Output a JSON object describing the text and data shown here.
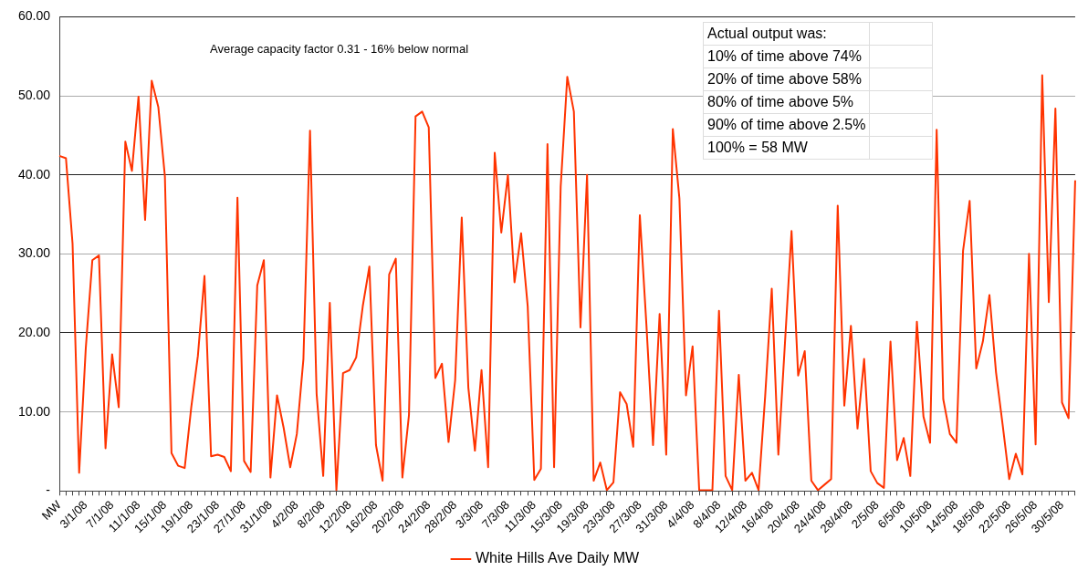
{
  "chart_data": {
    "type": "line",
    "categories": [
      "MW",
      null,
      null,
      null,
      "3/1/08",
      null,
      null,
      null,
      "7/1/08",
      null,
      null,
      null,
      "11/1/08",
      null,
      null,
      null,
      "15/1/08",
      null,
      null,
      null,
      "19/1/08",
      null,
      null,
      null,
      "23/1/08",
      null,
      null,
      null,
      "27/1/08",
      null,
      null,
      null,
      "31/1/08",
      null,
      null,
      null,
      "4/2/08",
      null,
      null,
      null,
      "8/2/08",
      null,
      null,
      null,
      "12/2/08",
      null,
      null,
      null,
      "16/2/08",
      null,
      null,
      null,
      "20/2/08",
      null,
      null,
      null,
      "24/2/08",
      null,
      null,
      null,
      "28/2/08",
      null,
      null,
      null,
      "3/3/08",
      null,
      null,
      null,
      "7/3/08",
      null,
      null,
      null,
      "11/3/08",
      null,
      null,
      null,
      "15/3/08",
      null,
      null,
      null,
      "19/3/08",
      null,
      null,
      null,
      "23/3/08",
      null,
      null,
      null,
      "27/3/08",
      null,
      null,
      null,
      "31/3/08",
      null,
      null,
      null,
      "4/4/08",
      null,
      null,
      null,
      "8/4/08",
      null,
      null,
      null,
      "12/4/08",
      null,
      null,
      null,
      "16/4/08",
      null,
      null,
      null,
      "20/4/08",
      null,
      null,
      null,
      "24/4/08",
      null,
      null,
      null,
      "28/4/08",
      null,
      null,
      null,
      "2/5/08",
      null,
      null,
      null,
      "6/5/08",
      null,
      null,
      null,
      "10/5/08",
      null,
      null,
      null,
      "14/5/08",
      null,
      null,
      null,
      "18/5/08",
      null,
      null,
      null,
      "22/5/08",
      null,
      null,
      null,
      "26/5/08",
      null,
      null,
      null,
      "30/5/08",
      null,
      null
    ],
    "series": [
      {
        "name": "White Hills Ave Daily MW",
        "color": "#ff3300",
        "values": [
          42.4,
          42.1,
          31.3,
          2.3,
          18,
          29.2,
          29.8,
          5.4,
          17.3,
          10.6,
          44.2,
          40.5,
          49.9,
          34.3,
          51.9,
          48.6,
          39.8,
          4.8,
          3.2,
          2.9,
          10.6,
          17.1,
          27.2,
          4.4,
          4.6,
          4.3,
          2.5,
          37.1,
          3.8,
          2.4,
          26,
          29.2,
          1.7,
          12.1,
          8,
          3,
          7.2,
          16.7,
          45.6,
          12.3,
          1.9,
          23.8,
          0.1,
          14.9,
          15.3,
          16.9,
          23.4,
          28.4,
          5.8,
          1.3,
          27.4,
          29.4,
          1.7,
          9.6,
          47.4,
          48,
          46,
          14.3,
          16.1,
          6.2,
          14,
          34.6,
          13.1,
          5.1,
          15.3,
          3,
          42.8,
          32.7,
          40,
          26.4,
          32.6,
          23.4,
          1.4,
          2.8,
          43.9,
          3,
          38.5,
          52.4,
          48,
          20.7,
          40,
          1.3,
          3.6,
          0.1,
          1.1,
          12.5,
          11,
          5.6,
          34.9,
          21,
          5.8,
          22.4,
          4.6,
          45.8,
          37,
          12.1,
          18.3,
          0.1,
          0.1,
          0.1,
          22.8,
          1.9,
          0.1,
          14.7,
          1.3,
          2.3,
          0.1,
          12,
          25.6,
          4.6,
          18.7,
          32.9,
          14.6,
          17.7,
          1.3,
          0.1,
          0.8,
          1.5,
          36.1,
          10.8,
          20.9,
          7.9,
          16.7,
          2.5,
          1,
          0.4,
          18.9,
          3.9,
          6.7,
          1.9,
          21.4,
          9.4,
          6.1,
          45.7,
          11.6,
          7.2,
          6.1,
          30.4,
          36.7,
          15.5,
          18.9,
          24.8,
          15,
          8.4,
          1.5,
          4.7,
          2.1,
          30,
          5.9,
          52.6,
          23.9,
          48.4,
          11.2,
          9.2,
          39.3
        ]
      }
    ],
    "ylim": [
      0,
      60
    ],
    "yticks": [
      {
        "value": 0,
        "label": "-"
      },
      {
        "value": 10,
        "label": "10.00"
      },
      {
        "value": 20,
        "label": "20.00"
      },
      {
        "value": 30,
        "label": "30.00"
      },
      {
        "value": 40,
        "label": "40.00"
      },
      {
        "value": 50,
        "label": "50.00"
      },
      {
        "value": 60,
        "label": "60.00"
      }
    ],
    "grid": "y",
    "legend": "bottom",
    "marker": "none",
    "line_style": "solid",
    "annotations": [
      "Average capacity factor  0.31 - 16% below normal",
      "Actual output was:",
      "10% of time above 74%",
      "20% of time above 58%",
      "80% of time above 5%",
      "90% of time above 2.5%",
      "100% = 58 MW"
    ]
  }
}
